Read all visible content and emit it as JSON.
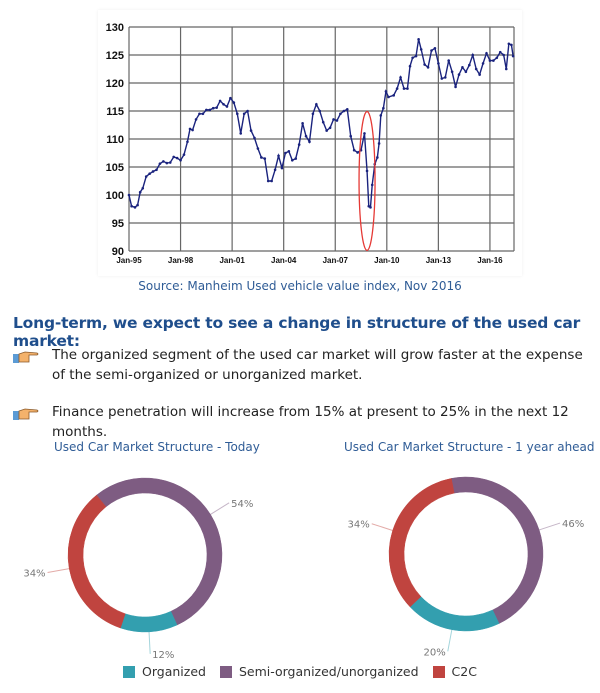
{
  "chart_data": [
    {
      "type": "line",
      "title": "",
      "xlabel": "",
      "ylabel": "",
      "ylim": [
        90,
        130
      ],
      "xlim": [
        1995,
        2017.4
      ],
      "yticks": [
        "90",
        "95",
        "100",
        "105",
        "110",
        "115",
        "120",
        "125",
        "130"
      ],
      "xticks": [
        {
          "year": 1995,
          "label": "Jan-95"
        },
        {
          "year": 1998,
          "label": "Jan-98"
        },
        {
          "year": 2001,
          "label": "Jan-01"
        },
        {
          "year": 2004,
          "label": "Jan-04"
        },
        {
          "year": 2007,
          "label": "Jan-07"
        },
        {
          "year": 2010,
          "label": "Jan-10"
        },
        {
          "year": 2013,
          "label": "Jan-13"
        },
        {
          "year": 2016,
          "label": "Jan-16"
        }
      ],
      "grid": true,
      "series": [
        {
          "name": "Manheim Used Vehicle Value Index",
          "color": "#1a237e",
          "points": [
            [
              1995.0,
              100
            ],
            [
              1995.15,
              98
            ],
            [
              1995.35,
              97.8
            ],
            [
              1995.5,
              98.2
            ],
            [
              1995.65,
              100.5
            ],
            [
              1995.8,
              101.2
            ],
            [
              1996.0,
              103.3
            ],
            [
              1996.2,
              103.8
            ],
            [
              1996.4,
              104.2
            ],
            [
              1996.6,
              104.5
            ],
            [
              1996.8,
              105.6
            ],
            [
              1997.0,
              106
            ],
            [
              1997.2,
              105.7
            ],
            [
              1997.4,
              105.8
            ],
            [
              1997.6,
              106.8
            ],
            [
              1997.8,
              106.6
            ],
            [
              1998.0,
              106.2
            ],
            [
              1998.2,
              107.2
            ],
            [
              1998.4,
              109.5
            ],
            [
              1998.55,
              111.8
            ],
            [
              1998.7,
              111.6
            ],
            [
              1998.9,
              113.5
            ],
            [
              1999.1,
              114.5
            ],
            [
              1999.3,
              114.5
            ],
            [
              1999.5,
              115.2
            ],
            [
              1999.7,
              115.2
            ],
            [
              1999.9,
              115.5
            ],
            [
              2000.1,
              115.6
            ],
            [
              2000.3,
              116.8
            ],
            [
              2000.5,
              116.2
            ],
            [
              2000.7,
              115.8
            ],
            [
              2000.9,
              117.3
            ],
            [
              2001.1,
              116.5
            ],
            [
              2001.3,
              114.5
            ],
            [
              2001.5,
              111
            ],
            [
              2001.7,
              114.5
            ],
            [
              2001.9,
              115
            ],
            [
              2002.1,
              111.5
            ],
            [
              2002.3,
              110.2
            ],
            [
              2002.5,
              108.3
            ],
            [
              2002.7,
              106.7
            ],
            [
              2002.9,
              106.5
            ],
            [
              2003.1,
              102.5
            ],
            [
              2003.3,
              102.5
            ],
            [
              2003.5,
              104.5
            ],
            [
              2003.7,
              107
            ],
            [
              2003.9,
              104.8
            ],
            [
              2004.1,
              107.5
            ],
            [
              2004.3,
              107.8
            ],
            [
              2004.5,
              106.2
            ],
            [
              2004.7,
              106.5
            ],
            [
              2004.9,
              109
            ],
            [
              2005.1,
              112.8
            ],
            [
              2005.3,
              110.5
            ],
            [
              2005.5,
              109.5
            ],
            [
              2005.7,
              114.5
            ],
            [
              2005.9,
              116.2
            ],
            [
              2006.1,
              115
            ],
            [
              2006.3,
              113
            ],
            [
              2006.5,
              111.5
            ],
            [
              2006.7,
              112
            ],
            [
              2006.9,
              113.5
            ],
            [
              2007.1,
              113.3
            ],
            [
              2007.3,
              114.5
            ],
            [
              2007.5,
              115
            ],
            [
              2007.7,
              115.3
            ],
            [
              2007.9,
              110.5
            ],
            [
              2008.1,
              108
            ],
            [
              2008.3,
              107.6
            ],
            [
              2008.5,
              108
            ],
            [
              2008.7,
              111
            ],
            [
              2008.85,
              104.3
            ],
            [
              2008.95,
              98
            ],
            [
              2009.05,
              97.8
            ],
            [
              2009.15,
              101.8
            ],
            [
              2009.3,
              105.5
            ],
            [
              2009.45,
              106.7
            ],
            [
              2009.55,
              109.2
            ],
            [
              2009.65,
              114.2
            ],
            [
              2009.8,
              115.5
            ],
            [
              2009.95,
              118.5
            ],
            [
              2010.1,
              117.5
            ],
            [
              2010.4,
              117.8
            ],
            [
              2010.6,
              119
            ],
            [
              2010.8,
              121
            ],
            [
              2011.0,
              119
            ],
            [
              2011.2,
              119
            ],
            [
              2011.35,
              123
            ],
            [
              2011.5,
              124.5
            ],
            [
              2011.7,
              124.8
            ],
            [
              2011.85,
              127.8
            ],
            [
              2012.0,
              126
            ],
            [
              2012.2,
              123.3
            ],
            [
              2012.4,
              122.8
            ],
            [
              2012.6,
              125.8
            ],
            [
              2012.8,
              126.2
            ],
            [
              2013.0,
              123.5
            ],
            [
              2013.2,
              120.8
            ],
            [
              2013.4,
              121
            ],
            [
              2013.6,
              124
            ],
            [
              2013.8,
              122
            ],
            [
              2014.0,
              119.3
            ],
            [
              2014.2,
              121.5
            ],
            [
              2014.4,
              122.8
            ],
            [
              2014.6,
              122
            ],
            [
              2014.8,
              123.2
            ],
            [
              2015.0,
              125
            ],
            [
              2015.2,
              122.5
            ],
            [
              2015.4,
              121.5
            ],
            [
              2015.6,
              123.5
            ],
            [
              2015.8,
              125.3
            ],
            [
              2016.0,
              124
            ],
            [
              2016.2,
              124
            ],
            [
              2016.4,
              124.5
            ],
            [
              2016.6,
              125.5
            ],
            [
              2016.8,
              125
            ],
            [
              2016.95,
              122.5
            ],
            [
              2017.1,
              127
            ],
            [
              2017.25,
              126.8
            ],
            [
              2017.35,
              124.8
            ]
          ]
        }
      ],
      "annotation_color": "#e53935"
    },
    {
      "type": "pie",
      "title": "Used Car Market Structure - Today",
      "slices": [
        {
          "name": "Semi-organized/unorganized",
          "value": 54,
          "label": "54%"
        },
        {
          "name": "Organized",
          "value": 12,
          "label": "12%"
        },
        {
          "name": "C2C",
          "value": 34,
          "label": "34%"
        }
      ]
    },
    {
      "type": "pie",
      "title": "Used Car Market Structure - 1 year ahead",
      "slices": [
        {
          "name": "Semi-organized/unorganized",
          "value": 46,
          "label": "46%"
        },
        {
          "name": "Organized",
          "value": 20,
          "label": "20%"
        },
        {
          "name": "C2C",
          "value": 34,
          "label": "34%"
        }
      ]
    }
  ],
  "source": "Source: Manheim Used vehicle value index, Nov 2016",
  "heading": "Long-term, we expect to see a change in structure of the used car market:",
  "bullets": [
    "The organized segment of the used car market will grow faster at the expense of the semi-organized or unorganized market.",
    "Finance penetration will increase from 15% at present to 25% in the next 12 months."
  ],
  "legend": [
    {
      "label": "Organized",
      "color": "#339faf"
    },
    {
      "label": "Semi-organized/unorganized",
      "color": "#7e5c82"
    },
    {
      "label": "C2C",
      "color": "#c0443f"
    }
  ],
  "colors": {
    "Organized": "#339faf",
    "Semi-organized/unorganized": "#7e5c82",
    "C2C": "#c0443f"
  }
}
